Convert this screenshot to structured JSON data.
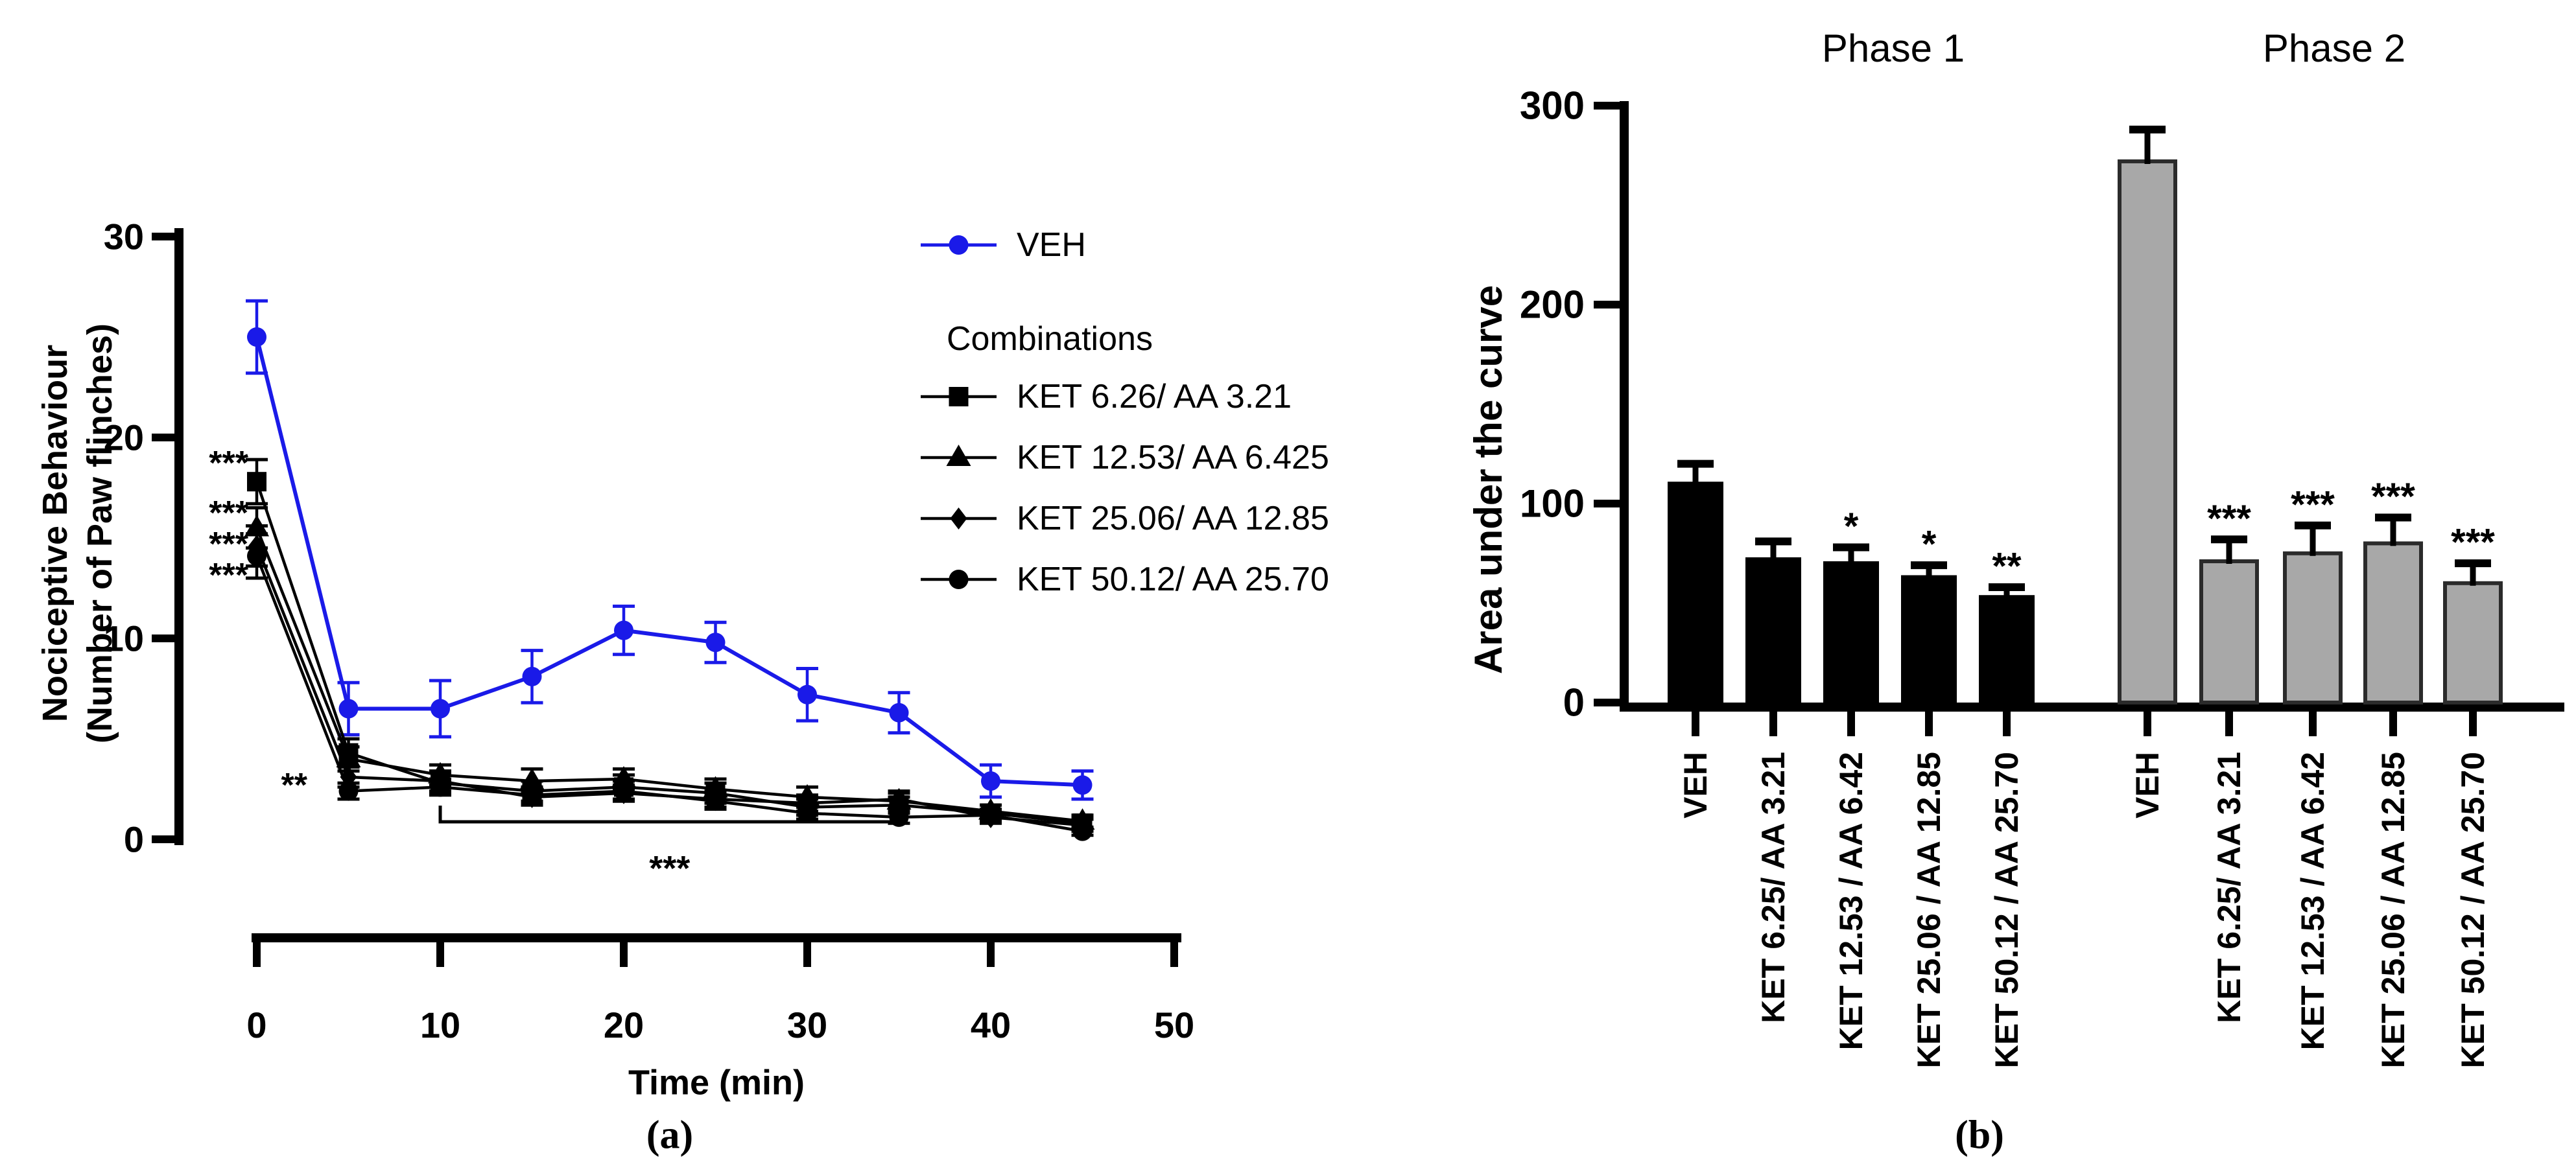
{
  "figure": {
    "panel_a_label": "(a)",
    "panel_b_label": "(b)"
  },
  "colors": {
    "veh_blue": "#1a1ae8",
    "black": "#000000",
    "gray_fill": "#a8a8a8",
    "gray_stroke": "#2b2b2b"
  },
  "chart_data": [
    {
      "id": "panel-a",
      "type": "line",
      "xlabel": "Time (min)",
      "ylabel_lines": [
        "Nociceptive Behaviour",
        "(Number of Paw flinches)"
      ],
      "xlim": [
        0,
        50
      ],
      "ylim": [
        0,
        30
      ],
      "xticks": [
        0,
        10,
        20,
        30,
        40,
        50
      ],
      "yticks": [
        30,
        20,
        10,
        0
      ],
      "x": [
        0,
        5,
        10,
        15,
        20,
        25,
        30,
        35,
        40,
        45
      ],
      "series": [
        {
          "name": "VEH",
          "marker": "circle",
          "color": "#1a1ae8",
          "values": [
            25.0,
            6.5,
            6.5,
            8.1,
            10.4,
            9.8,
            7.2,
            6.3,
            2.9,
            2.7
          ],
          "sem": [
            1.8,
            1.3,
            1.4,
            1.3,
            1.2,
            1.0,
            1.3,
            1.0,
            0.8,
            0.7
          ]
        },
        {
          "name": "KET 6.26/ AA 3.21",
          "marker": "square",
          "color": "#000000",
          "values": [
            17.8,
            4.3,
            2.8,
            2.4,
            2.6,
            2.3,
            1.6,
            1.7,
            1.3,
            0.8
          ],
          "sem": [
            1.1,
            0.7,
            0.5,
            0.5,
            0.6,
            0.5,
            0.4,
            0.4,
            0.4,
            0.3
          ]
        },
        {
          "name": "KET 12.53/ AA 6.425",
          "marker": "triangle",
          "color": "#000000",
          "values": [
            15.5,
            4.0,
            3.2,
            2.9,
            3.0,
            2.5,
            2.1,
            1.9,
            1.4,
            0.9
          ],
          "sem": [
            1.0,
            0.6,
            0.5,
            0.6,
            0.5,
            0.5,
            0.5,
            0.4,
            0.3,
            0.3
          ]
        },
        {
          "name": "KET 25.06/ AA 12.85",
          "marker": "diamond",
          "color": "#000000",
          "values": [
            14.6,
            3.1,
            2.9,
            2.1,
            2.3,
            2.0,
            1.8,
            2.0,
            1.1,
            0.7
          ],
          "sem": [
            1.0,
            0.5,
            0.5,
            0.4,
            0.4,
            0.4,
            0.4,
            0.4,
            0.3,
            0.3
          ]
        },
        {
          "name": "KET 50.12/ AA 25.70",
          "marker": "circle",
          "color": "#000000",
          "values": [
            14.1,
            2.4,
            2.6,
            2.2,
            2.4,
            1.9,
            1.3,
            1.1,
            1.2,
            0.4
          ],
          "sem": [
            1.1,
            0.4,
            0.4,
            0.4,
            0.5,
            0.4,
            0.3,
            0.3,
            0.3,
            0.2
          ]
        }
      ],
      "legend": {
        "veh_label": "VEH",
        "group_label": "Combinations"
      },
      "annotations": {
        "t0_stars": [
          "***",
          "***",
          "***",
          "***"
        ],
        "t5_star": "**",
        "bracket": {
          "x1": 10,
          "x2": 35,
          "label": "***"
        }
      }
    },
    {
      "id": "panel-b",
      "type": "bar",
      "ylabel": "Area under the curve",
      "ylim": [
        0,
        300
      ],
      "yticks": [
        300,
        200,
        100,
        0
      ],
      "group_labels": [
        "Phase 1",
        "Phase 2"
      ],
      "categories": [
        "VEH",
        "KET 6.25/ AA 3.21",
        "KET 12.53 / AA 6.42",
        "KET 25.06 / AA 12.85",
        "KET 50.12 / AA 25.70"
      ],
      "series": [
        {
          "name": "Phase 1",
          "fill": "#000000",
          "stroke": "#000000",
          "values": [
            111,
            73,
            71,
            64,
            54
          ],
          "sem": [
            9,
            8,
            7,
            5,
            4
          ],
          "sig": [
            "",
            "",
            "*",
            "*",
            "**"
          ]
        },
        {
          "name": "Phase 2",
          "fill": "#a8a8a8",
          "stroke": "#2b2b2b",
          "values": [
            272,
            71,
            75,
            80,
            60
          ],
          "sem": [
            16,
            11,
            14,
            13,
            10
          ],
          "sig": [
            "",
            "***",
            "***",
            "***",
            "***"
          ]
        }
      ]
    }
  ]
}
